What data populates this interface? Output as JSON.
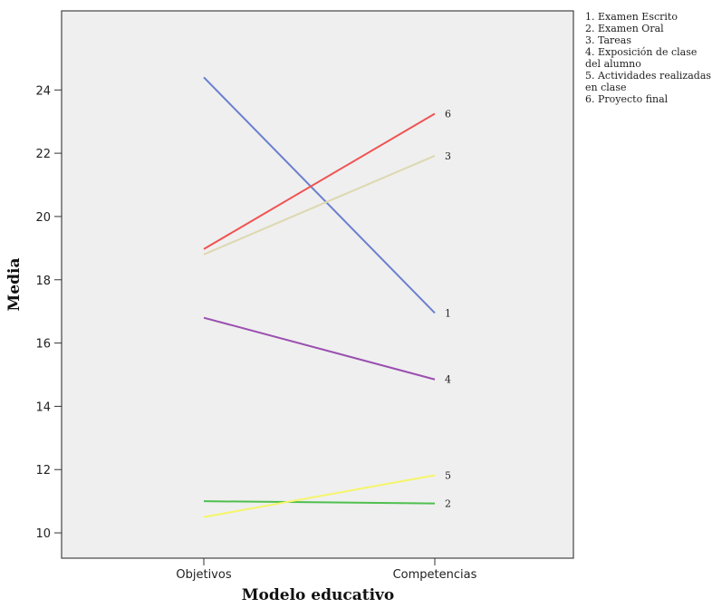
{
  "chart_data": {
    "type": "line",
    "title": "",
    "xlabel": "Modelo educativo",
    "ylabel": "Media",
    "categories": [
      "Objetivos",
      "Competencias"
    ],
    "ylim": [
      9.2,
      26.5
    ],
    "yticks": [
      10,
      12,
      14,
      16,
      18,
      20,
      22,
      24
    ],
    "grid": false,
    "legend_position": "right",
    "legend": [
      [
        "1. Examen Escrito"
      ],
      [
        "2. Examen Oral"
      ],
      [
        "3. Tareas"
      ],
      [
        "4. Exposición de clase",
        "del alumno"
      ],
      [
        "5. Actividades realizadas",
        "en clase"
      ],
      [
        "6. Proyecto final"
      ]
    ],
    "series": [
      {
        "label": "1",
        "values": [
          24.4,
          16.95
        ],
        "color": "#6b7fcf"
      },
      {
        "label": "2",
        "values": [
          11.0,
          10.93
        ],
        "color": "#4fbf4f"
      },
      {
        "label": "3",
        "values": [
          18.8,
          21.92
        ],
        "color": "#ddd8b0"
      },
      {
        "label": "4",
        "values": [
          16.8,
          14.85
        ],
        "color": "#9a4fb0"
      },
      {
        "label": "5",
        "values": [
          10.5,
          11.82
        ],
        "color": "#f5f56a"
      },
      {
        "label": "6",
        "values": [
          18.97,
          23.25
        ],
        "color": "#f05252"
      }
    ]
  }
}
